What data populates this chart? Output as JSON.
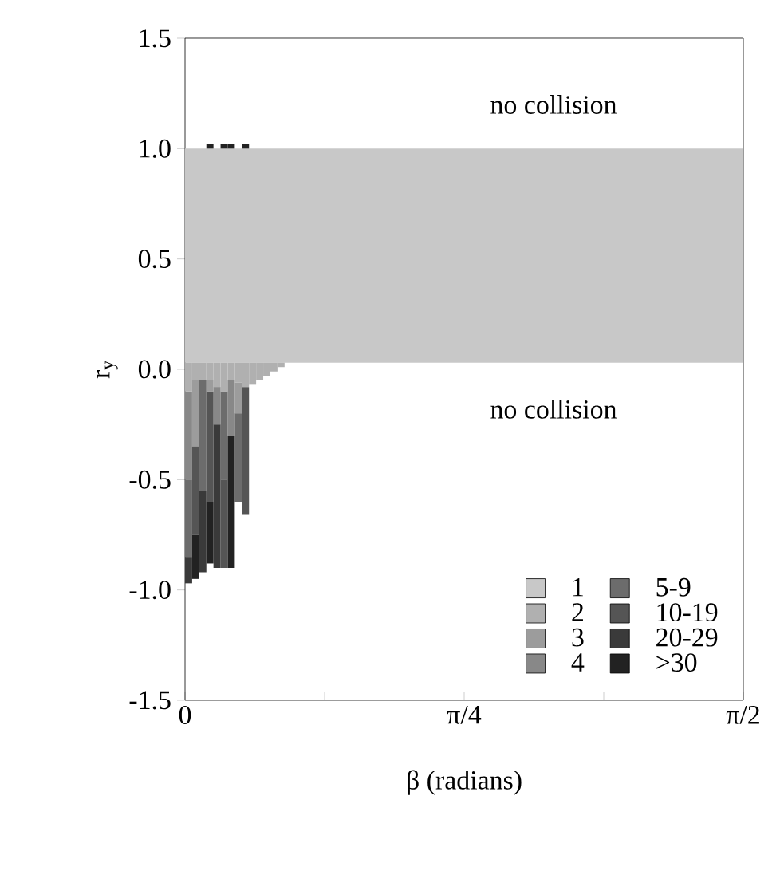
{
  "chart_data": {
    "type": "bar",
    "xlabel": "β (radians)",
    "ylabel": "r$_{y}$",
    "xlim": [
      0,
      1.5708
    ],
    "ylim": [
      -1.5,
      1.5
    ],
    "xticks": [
      {
        "value": 0,
        "label": "0"
      },
      {
        "value": 0.3927,
        "label": null
      },
      {
        "value": 0.7854,
        "label": "π/4"
      },
      {
        "value": 1.1781,
        "label": null
      },
      {
        "value": 1.5708,
        "label": "π/2"
      }
    ],
    "yticks": [
      {
        "value": -1.5,
        "label": "-1.5"
      },
      {
        "value": -1,
        "label": "-1.0"
      },
      {
        "value": -0.5,
        "label": "-0.5"
      },
      {
        "value": 0,
        "label": "0.0"
      },
      {
        "value": 0.5,
        "label": "0.5"
      },
      {
        "value": 1,
        "label": "1.0"
      },
      {
        "value": 1.5,
        "label": "1.5"
      }
    ],
    "bands": [
      {
        "axis": "y",
        "from": 0.03,
        "to": 1.0,
        "color": "#c8c8c8",
        "label": "1"
      }
    ],
    "series": [
      {
        "name": "2",
        "color": "#b0b0b0",
        "x": [
          0.01,
          0.03,
          0.05,
          0.07,
          0.09,
          0.11,
          0.13,
          0.15,
          0.17,
          0.19,
          0.21,
          0.23,
          0.25,
          0.27
        ],
        "base": [
          0.03,
          0.03,
          0.03,
          0.03,
          0.03,
          0.03,
          0.03,
          0.03,
          0.03,
          0.03,
          0.03,
          0.03,
          0.03,
          0.03
        ],
        "values": [
          -0.13,
          -0.08,
          -0.08,
          -0.08,
          -0.11,
          -0.13,
          -0.08,
          -0.09,
          -0.11,
          -0.1,
          -0.08,
          -0.06,
          -0.04,
          -0.02
        ]
      },
      {
        "name": "3",
        "color": "#9c9c9c",
        "x": [
          0.03,
          0.07,
          0.15
        ],
        "base": [
          -0.05,
          -0.05,
          -0.06
        ],
        "values": [
          -0.3,
          -0.05,
          -0.14
        ]
      },
      {
        "name": "4",
        "color": "#888888",
        "x": [
          0.01,
          0.09,
          0.13
        ],
        "base": [
          -0.1,
          -0.08,
          -0.05
        ],
        "values": [
          -0.4,
          -0.17,
          -0.25
        ]
      },
      {
        "name": "5-9",
        "color": "#6c6c6c",
        "x": [
          0.01,
          0.05,
          0.11,
          0.15
        ],
        "base": [
          -0.5,
          -0.05,
          -0.1,
          -0.2
        ],
        "values": [
          -0.35,
          -0.5,
          -0.4,
          -0.4
        ]
      },
      {
        "name": "10-19",
        "color": "#555555",
        "x": [
          0.03,
          0.07,
          0.11,
          0.17
        ],
        "base": [
          -0.35,
          -0.1,
          -0.5,
          -0.08
        ],
        "values": [
          -0.4,
          -0.5,
          -0.4,
          -0.58
        ]
      },
      {
        "name": "20-29",
        "color": "#3a3a3a",
        "x": [
          0.01,
          0.05,
          0.09
        ],
        "base": [
          -0.85,
          -0.55,
          -0.25
        ],
        "values": [
          -0.12,
          -0.37,
          -0.65
        ]
      },
      {
        "name": ">30",
        "color": "#222222",
        "x": [
          0.03,
          0.07,
          0.13
        ],
        "base": [
          -0.75,
          -0.6,
          -0.3
        ],
        "values": [
          -0.2,
          -0.28,
          -0.6
        ]
      },
      {
        "color": "#222222",
        "x": [
          0.07,
          0.11,
          0.13,
          0.17
        ],
        "base": [
          1.0,
          1.0,
          1.0,
          1.0
        ],
        "values": [
          0.02,
          0.02,
          0.02,
          0.02
        ]
      }
    ],
    "legend": "bottom right",
    "annotations": [
      "no collision",
      "no collision"
    ]
  }
}
